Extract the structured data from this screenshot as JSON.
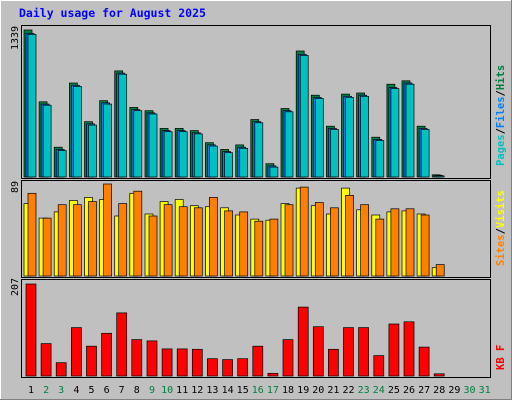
{
  "title": "Daily usage for August 2025",
  "colors": {
    "background": "#c0c0c0",
    "title": "#0000ff",
    "pages": "#00c0c0",
    "files": "#0080ff",
    "hits": "#008040",
    "visits": "#ffff00",
    "sites": "#ff8000",
    "kbytes": "#ff0000",
    "weekend_day": "#008040",
    "weekday": "#000000"
  },
  "panels": {
    "hits": {
      "max_label": "1339",
      "legend": [
        "Pages",
        "/",
        "Files",
        "/",
        "Hits"
      ]
    },
    "visits": {
      "max_label": "89",
      "legend": [
        "Sites",
        "/",
        "Visits"
      ]
    },
    "kbytes": {
      "max_label": "207",
      "legend": [
        "KB F"
      ]
    }
  },
  "days": [
    "1",
    "2",
    "3",
    "4",
    "5",
    "6",
    "7",
    "8",
    "9",
    "10",
    "11",
    "12",
    "13",
    "14",
    "15",
    "16",
    "17",
    "18",
    "19",
    "20",
    "21",
    "22",
    "23",
    "24",
    "25",
    "26",
    "27",
    "28",
    "29",
    "30",
    "31"
  ],
  "weekend_days": [
    "2",
    "3",
    "9",
    "10",
    "16",
    "17",
    "23",
    "24",
    "30",
    "31"
  ],
  "chart_data": [
    {
      "type": "bar",
      "categories": [
        "1",
        "2",
        "3",
        "4",
        "5",
        "6",
        "7",
        "8",
        "9",
        "10",
        "11",
        "12",
        "13",
        "14",
        "15",
        "16",
        "17",
        "18",
        "19",
        "20",
        "21",
        "22",
        "23",
        "24",
        "25",
        "26",
        "27",
        "28",
        "29",
        "30",
        "31"
      ],
      "ylim": [
        0,
        1339
      ],
      "series": [
        {
          "name": "Hits",
          "values": [
            1330,
            680,
            270,
            850,
            500,
            690,
            960,
            630,
            600,
            440,
            440,
            420,
            310,
            250,
            290,
            520,
            120,
            620,
            1140,
            740,
            460,
            750,
            760,
            360,
            840,
            870,
            460,
            20,
            0,
            0,
            0
          ]
        },
        {
          "name": "Files",
          "values": [
            1300,
            660,
            250,
            830,
            480,
            670,
            940,
            610,
            580,
            420,
            420,
            400,
            290,
            230,
            270,
            500,
            100,
            600,
            1110,
            720,
            440,
            730,
            740,
            340,
            810,
            850,
            440,
            15,
            0,
            0,
            0
          ]
        },
        {
          "name": "Pages",
          "values": [
            1290,
            650,
            240,
            820,
            470,
            660,
            930,
            600,
            570,
            410,
            410,
            390,
            280,
            220,
            260,
            490,
            90,
            590,
            1100,
            710,
            430,
            720,
            730,
            330,
            800,
            840,
            430,
            10,
            0,
            0,
            0
          ]
        }
      ]
    },
    {
      "type": "bar",
      "categories": [
        "1",
        "2",
        "3",
        "4",
        "5",
        "6",
        "7",
        "8",
        "9",
        "10",
        "11",
        "12",
        "13",
        "14",
        "15",
        "16",
        "17",
        "18",
        "19",
        "20",
        "21",
        "22",
        "23",
        "24",
        "25",
        "26",
        "27",
        "28",
        "29",
        "30",
        "31"
      ],
      "ylim": [
        0,
        89
      ],
      "series": [
        {
          "name": "Visits",
          "values": [
            70,
            56,
            62,
            73,
            76,
            74,
            58,
            80,
            60,
            72,
            74,
            68,
            67,
            66,
            59,
            55,
            54,
            70,
            85,
            68,
            60,
            85,
            64,
            59,
            62,
            63,
            60,
            8,
            0,
            0,
            0
          ]
        },
        {
          "name": "Sites",
          "values": [
            80,
            56,
            69,
            69,
            72,
            89,
            70,
            82,
            58,
            69,
            67,
            66,
            76,
            63,
            62,
            53,
            55,
            69,
            86,
            71,
            66,
            78,
            69,
            55,
            65,
            65,
            59,
            11,
            0,
            0,
            0
          ]
        }
      ]
    },
    {
      "type": "bar",
      "categories": [
        "1",
        "2",
        "3",
        "4",
        "5",
        "6",
        "7",
        "8",
        "9",
        "10",
        "11",
        "12",
        "13",
        "14",
        "15",
        "16",
        "17",
        "18",
        "19",
        "20",
        "21",
        "22",
        "23",
        "24",
        "25",
        "26",
        "27",
        "28",
        "29",
        "30",
        "31"
      ],
      "ylim": [
        0,
        207
      ],
      "series": [
        {
          "name": "KBytes",
          "values": [
            207,
            73,
            30,
            109,
            67,
            96,
            142,
            82,
            79,
            61,
            61,
            60,
            39,
            37,
            39,
            67,
            6,
            82,
            155,
            111,
            60,
            109,
            109,
            46,
            117,
            122,
            65,
            5,
            0,
            0,
            0
          ]
        }
      ]
    }
  ]
}
